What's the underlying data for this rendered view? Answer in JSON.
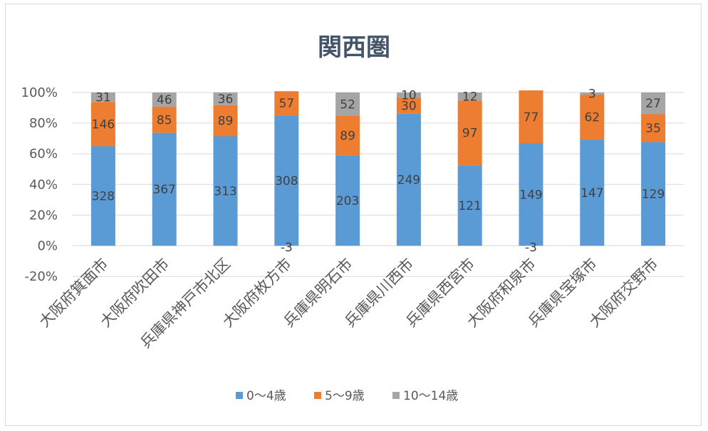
{
  "chart_data": {
    "type": "bar",
    "stacked": "percent",
    "title": "関西圏",
    "categories": [
      "大阪府箕面市",
      "大阪府吹田市",
      "兵庫県神戸市北区",
      "大阪府枚方市",
      "兵庫県明石市",
      "兵庫県川西市",
      "兵庫県西宮市",
      "大阪府和泉市",
      "兵庫県宝塚市",
      "大阪府交野市"
    ],
    "series": [
      {
        "name": "0～4歳",
        "color": "#5b9bd5",
        "values": [
          328,
          367,
          313,
          308,
          203,
          249,
          121,
          149,
          147,
          129
        ]
      },
      {
        "name": "5～9歳",
        "color": "#ed7d31",
        "values": [
          146,
          85,
          89,
          57,
          89,
          30,
          97,
          77,
          62,
          35
        ]
      },
      {
        "name": "10～14歳",
        "color": "#a5a5a5",
        "values": [
          31,
          46,
          36,
          -3,
          52,
          10,
          12,
          -3,
          3,
          27
        ]
      }
    ],
    "ylim": [
      -20,
      100
    ],
    "yticks": [
      "-20%",
      "0%",
      "20%",
      "40%",
      "60%",
      "80%",
      "100%"
    ],
    "grid": true,
    "legend_position": "bottom"
  }
}
